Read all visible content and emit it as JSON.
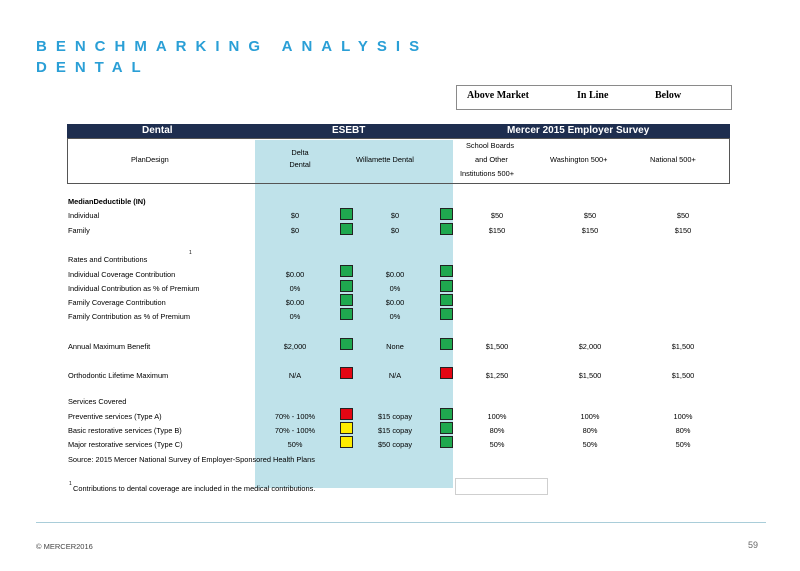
{
  "title": {
    "line1": "BENCHMARKING ANALYSIS",
    "line2": "DENTAL"
  },
  "legend": {
    "above": "Above Market",
    "inline": "In Line",
    "below": "Below"
  },
  "header": {
    "dental": "Dental",
    "esebt": "ESEBT",
    "mercer": "Mercer 2015 Employer Survey"
  },
  "columns": {
    "plan_design": "PlanDesign",
    "delta_l1": "Delta",
    "delta_l2": "Dental",
    "willamette": "Willamette Dental",
    "school_l1": "School Boards",
    "school_l2": "and Other",
    "school_l3": "Institutions 500+",
    "washington": "Washington 500+",
    "national": "National 500+"
  },
  "rows": {
    "deductible_heading": "MedianDeductible (IN)",
    "individual": {
      "label": "Individual",
      "delta": "$0",
      "will": "$0",
      "school": "$50",
      "wash": "$50",
      "nat": "$50"
    },
    "family": {
      "label": "Family",
      "delta": "$0",
      "will": "$0",
      "school": "$150",
      "wash": "$150",
      "nat": "$150"
    },
    "rates_heading": "Rates and Contributions",
    "rates_sup": "1",
    "ind_cov": {
      "label": "Individual Coverage Contribution",
      "delta": "$0.00",
      "will": "$0.00"
    },
    "ind_pct": {
      "label": "Individual Contribution as % of Premium",
      "delta": "0%",
      "will": "0%"
    },
    "fam_cov": {
      "label": "Family Coverage Contribution",
      "delta": "$0.00",
      "will": "$0.00"
    },
    "fam_pct": {
      "label": "Family Contribution as % of Premium",
      "delta": "0%",
      "will": "0%"
    },
    "annual_max": {
      "label": "Annual Maximum Benefit",
      "delta": "$2,000",
      "will": "None",
      "school": "$1,500",
      "wash": "$2,000",
      "nat": "$1,500"
    },
    "ortho": {
      "label": "Orthodontic Lifetime Maximum",
      "delta": "N/A",
      "will": "N/A",
      "school": "$1,250",
      "wash": "$1,500",
      "nat": "$1,500"
    },
    "services_heading": "Services Covered",
    "preventive": {
      "label": "Preventive services (Type A)",
      "delta": "70% - 100%",
      "will": "$15 copay",
      "school": "100%",
      "wash": "100%",
      "nat": "100%"
    },
    "basic": {
      "label": "Basic restorative services (Type B)",
      "delta": "70% - 100%",
      "will": "$15 copay",
      "school": "80%",
      "wash": "80%",
      "nat": "80%"
    },
    "major": {
      "label": "Major restorative services (Type C)",
      "delta": "50%",
      "will": "$50 copay",
      "school": "50%",
      "wash": "50%",
      "nat": "50%"
    }
  },
  "indicator_colors": {
    "green": "#1fa84f",
    "red": "#e30613",
    "yellow": "#ffed00"
  },
  "source": "Source: 2015 Mercer National Survey of Employer-Sponsored Health Plans",
  "footnote": {
    "sup": "1",
    "text": "Contributions to dental coverage are included in the medical contributions."
  },
  "footer": {
    "copyright": "© MERCER2016",
    "page": "59"
  },
  "header_color": "#1e2e4f",
  "title_color": "#2a9fd6"
}
